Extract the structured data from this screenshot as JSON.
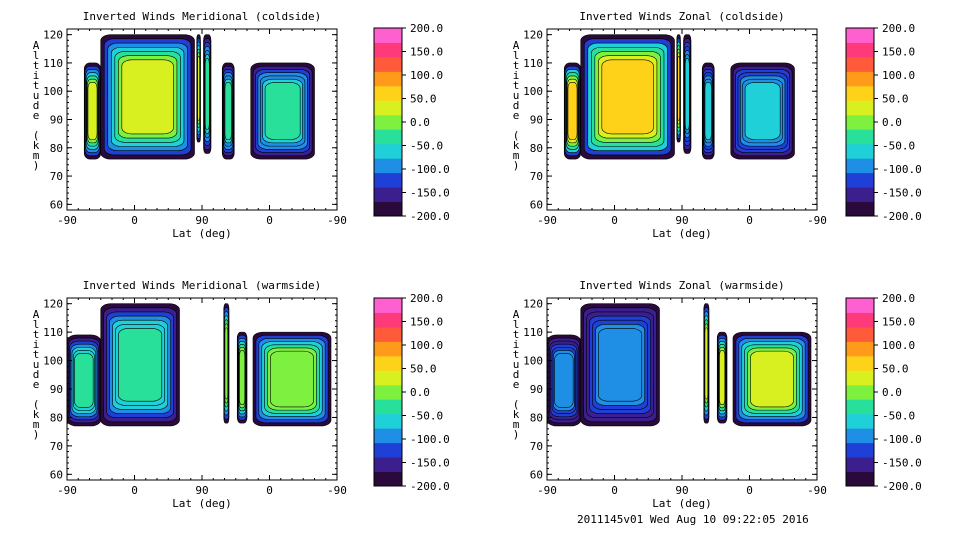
{
  "footer": "2011145v01 Wed Aug 10 09:22:05 2016",
  "chart_data": [
    {
      "type": "heatmap",
      "title": "Inverted Winds Meridional (coldside)",
      "xlabel": "Lat (deg)",
      "ylabel": "Altitude (km)",
      "x_tick_labels": [
        "-90",
        "0",
        "90",
        "0",
        "-90"
      ],
      "y_ticks": [
        60,
        70,
        80,
        90,
        100,
        110,
        120
      ],
      "ylim": [
        58,
        122
      ],
      "colorbar_ticks": [
        "200.0",
        "150.0",
        "100.0",
        "50.0",
        "0.0",
        "-50.0",
        "-100.0",
        "-150.0",
        "-200.0"
      ],
      "value_range": [
        -200,
        200
      ],
      "typical_values": {
        "lat_-45_to_80": 20,
        "lat_90_to_-60": -40
      }
    },
    {
      "type": "heatmap",
      "title": "Inverted Winds Zonal (coldside)",
      "xlabel": "Lat (deg)",
      "ylabel": "Altitude (km)",
      "x_tick_labels": [
        "-90",
        "0",
        "90",
        "0",
        "-90"
      ],
      "y_ticks": [
        60,
        70,
        80,
        90,
        100,
        110,
        120
      ],
      "ylim": [
        58,
        122
      ],
      "colorbar_ticks": [
        "200.0",
        "150.0",
        "100.0",
        "50.0",
        "0.0",
        "-50.0",
        "-100.0",
        "-150.0",
        "-200.0"
      ],
      "value_range": [
        -200,
        200
      ],
      "typical_values": {
        "lat_-45_to_80": 55,
        "lat_90_to_-60": -70
      }
    },
    {
      "type": "heatmap",
      "title": "Inverted Winds Meridional (warmside)",
      "xlabel": "Lat (deg)",
      "ylabel": "Altitude (km)",
      "x_tick_labels": [
        "-90",
        "0",
        "90",
        "0",
        "-90"
      ],
      "y_ticks": [
        60,
        70,
        80,
        90,
        100,
        110,
        120
      ],
      "ylim": [
        58,
        122
      ],
      "colorbar_ticks": [
        "200.0",
        "150.0",
        "100.0",
        "50.0",
        "0.0",
        "-50.0",
        "-100.0",
        "-150.0",
        "-200.0"
      ],
      "value_range": [
        -200,
        200
      ],
      "typical_values": {
        "lat_-45_to_50": -30,
        "lat_120_to_-70": 10
      }
    },
    {
      "type": "heatmap",
      "title": "Inverted Winds Zonal (warmside)",
      "xlabel": "Lat (deg)",
      "ylabel": "Altitude (km)",
      "x_tick_labels": [
        "-90",
        "0",
        "90",
        "0",
        "-90"
      ],
      "y_ticks": [
        60,
        70,
        80,
        90,
        100,
        110,
        120
      ],
      "ylim": [
        58,
        122
      ],
      "colorbar_ticks": [
        "200.0",
        "150.0",
        "100.0",
        "50.0",
        "0.0",
        "-50.0",
        "-100.0",
        "-150.0",
        "-200.0"
      ],
      "value_range": [
        -200,
        200
      ],
      "typical_values": {
        "lat_-45_to_50": -90,
        "lat_120_to_-70": 35
      }
    }
  ],
  "colormap": [
    "#2a0a3a",
    "#3b1f8f",
    "#1f3fd6",
    "#1f8fe6",
    "#20d0d8",
    "#28e09a",
    "#7ef040",
    "#d8f020",
    "#ffd21a",
    "#ff9a1a",
    "#ff5a3a",
    "#ff3a7a",
    "#ff60d0"
  ]
}
